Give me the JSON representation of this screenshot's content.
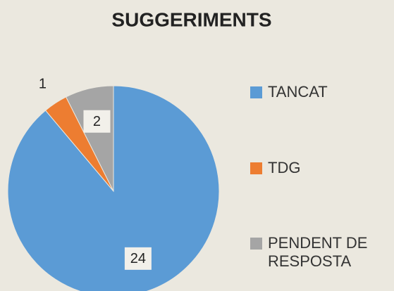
{
  "chart_data": {
    "type": "pie",
    "title": "SUGGERIMENTS",
    "categories": [
      "TANCAT",
      "TDG",
      "PENDENT DE RESPOSTA"
    ],
    "values": [
      24,
      1,
      2
    ],
    "colors": [
      "#5b9bd5",
      "#ed7d31",
      "#a5a5a5"
    ],
    "legend": "right"
  }
}
